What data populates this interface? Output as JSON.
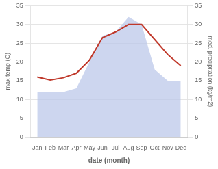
{
  "chart_data": {
    "type": "line",
    "categories": [
      "Jan",
      "Feb",
      "Mar",
      "Apr",
      "May",
      "Jun",
      "Jul",
      "Aug",
      "Sep",
      "Oct",
      "Nov",
      "Dec"
    ],
    "xlabel": "date (month)",
    "ylabel": "max temp (C)",
    "y2label": "med. precipitation (kg/m2)",
    "series": [
      {
        "type": "area",
        "axis": "y2",
        "color": "#b8c4e8",
        "marker": "none",
        "values": [
          12,
          12,
          12,
          13,
          20,
          27,
          28,
          32,
          30,
          18,
          15,
          15
        ]
      },
      {
        "type": "line",
        "color": "#c0392b",
        "marker": "none",
        "values": [
          16.0,
          15.2,
          15.8,
          17.0,
          20.5,
          26.5,
          28.0,
          30.0,
          30.0,
          26.0,
          22.0,
          19.0
        ]
      }
    ],
    "ylim": [
      0,
      35
    ],
    "yticks": [
      0,
      5,
      10,
      15,
      20,
      25,
      30,
      35
    ],
    "y2lim": [
      0,
      35
    ],
    "y2ticks": [
      0,
      5,
      10,
      15,
      20,
      25,
      30,
      35
    ],
    "grid": true
  }
}
